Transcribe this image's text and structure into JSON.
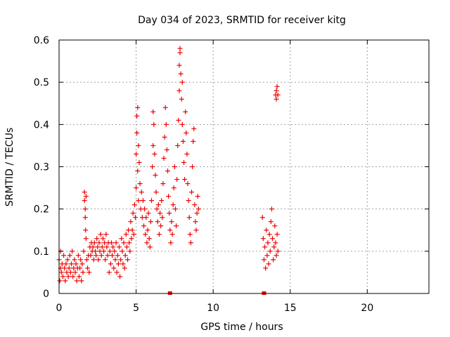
{
  "chart_data": {
    "type": "scatter",
    "title": "Day 034 of 2023, SRMTID for receiver kitg",
    "xlabel": "GPS time / hours",
    "ylabel": "SRMTID / TECUs",
    "xlim": [
      0,
      24
    ],
    "ylim": [
      0,
      0.6
    ],
    "xticks": [
      0,
      5,
      10,
      15,
      20
    ],
    "yticks": [
      0,
      0.1,
      0.2,
      0.3,
      0.4,
      0.5,
      0.6
    ],
    "xtick_labels": [
      "0",
      "5",
      "10",
      "15",
      "20"
    ],
    "ytick_labels": [
      "0",
      "0.1",
      "0.2",
      "0.3",
      "0.4",
      "0.5",
      "0.6"
    ],
    "grid": true,
    "marker": "+",
    "color": "#ee0000",
    "series": [
      {
        "name": "SRMTID",
        "points": [
          [
            0.0,
            0.08
          ],
          [
            0.05,
            0.03
          ],
          [
            0.1,
            0.06
          ],
          [
            0.1,
            0.1
          ],
          [
            0.15,
            0.05
          ],
          [
            0.2,
            0.07
          ],
          [
            0.25,
            0.04
          ],
          [
            0.3,
            0.09
          ],
          [
            0.35,
            0.06
          ],
          [
            0.4,
            0.03
          ],
          [
            0.45,
            0.07
          ],
          [
            0.5,
            0.05
          ],
          [
            0.55,
            0.08
          ],
          [
            0.6,
            0.04
          ],
          [
            0.65,
            0.06
          ],
          [
            0.7,
            0.09
          ],
          [
            0.75,
            0.05
          ],
          [
            0.8,
            0.07
          ],
          [
            0.85,
            0.1
          ],
          [
            0.9,
            0.04
          ],
          [
            0.95,
            0.06
          ],
          [
            1.0,
            0.08
          ],
          [
            1.05,
            0.05
          ],
          [
            1.1,
            0.07
          ],
          [
            1.15,
            0.03
          ],
          [
            1.2,
            0.06
          ],
          [
            1.25,
            0.09
          ],
          [
            1.3,
            0.04
          ],
          [
            1.35,
            0.06
          ],
          [
            1.4,
            0.08
          ],
          [
            1.45,
            0.03
          ],
          [
            1.5,
            0.07
          ],
          [
            1.55,
            0.05
          ],
          [
            1.6,
            0.1
          ],
          [
            1.65,
            0.24
          ],
          [
            1.65,
            0.22
          ],
          [
            1.7,
            0.2
          ],
          [
            1.7,
            0.18
          ],
          [
            1.72,
            0.15
          ],
          [
            1.75,
            0.23
          ],
          [
            1.75,
            0.13
          ],
          [
            1.8,
            0.08
          ],
          [
            1.85,
            0.06
          ],
          [
            1.9,
            0.09
          ],
          [
            1.95,
            0.05
          ],
          [
            2.0,
            0.11
          ],
          [
            2.05,
            0.09
          ],
          [
            2.1,
            0.12
          ],
          [
            2.15,
            0.1
          ],
          [
            2.2,
            0.11
          ],
          [
            2.25,
            0.08
          ],
          [
            2.3,
            0.12
          ],
          [
            2.35,
            0.1
          ],
          [
            2.4,
            0.09
          ],
          [
            2.45,
            0.13
          ],
          [
            2.5,
            0.11
          ],
          [
            2.55,
            0.08
          ],
          [
            2.6,
            0.12
          ],
          [
            2.65,
            0.1
          ],
          [
            2.7,
            0.14
          ],
          [
            2.75,
            0.09
          ],
          [
            2.8,
            0.11
          ],
          [
            2.85,
            0.13
          ],
          [
            2.9,
            0.1
          ],
          [
            2.95,
            0.12
          ],
          [
            3.0,
            0.08
          ],
          [
            3.05,
            0.14
          ],
          [
            3.1,
            0.11
          ],
          [
            3.15,
            0.09
          ],
          [
            3.2,
            0.12
          ],
          [
            3.25,
            0.05
          ],
          [
            3.3,
            0.1
          ],
          [
            3.35,
            0.07
          ],
          [
            3.4,
            0.12
          ],
          [
            3.45,
            0.09
          ],
          [
            3.5,
            0.11
          ],
          [
            3.55,
            0.06
          ],
          [
            3.6,
            0.1
          ],
          [
            3.65,
            0.08
          ],
          [
            3.7,
            0.12
          ],
          [
            3.75,
            0.05
          ],
          [
            3.8,
            0.09
          ],
          [
            3.85,
            0.07
          ],
          [
            3.9,
            0.11
          ],
          [
            3.95,
            0.04
          ],
          [
            4.0,
            0.08
          ],
          [
            4.05,
            0.13
          ],
          [
            4.1,
            0.1
          ],
          [
            4.15,
            0.07
          ],
          [
            4.2,
            0.12
          ],
          [
            4.25,
            0.06
          ],
          [
            4.3,
            0.09
          ],
          [
            4.35,
            0.14
          ],
          [
            4.4,
            0.11
          ],
          [
            4.45,
            0.08
          ],
          [
            4.5,
            0.15
          ],
          [
            4.55,
            0.12
          ],
          [
            4.6,
            0.1
          ],
          [
            4.65,
            0.17
          ],
          [
            4.7,
            0.13
          ],
          [
            4.75,
            0.15
          ],
          [
            4.8,
            0.19
          ],
          [
            4.85,
            0.14
          ],
          [
            4.9,
            0.21
          ],
          [
            4.95,
            0.18
          ],
          [
            5.0,
            0.25
          ],
          [
            5.0,
            0.33
          ],
          [
            5.05,
            0.38
          ],
          [
            5.05,
            0.42
          ],
          [
            5.1,
            0.44
          ],
          [
            5.1,
            0.29
          ],
          [
            5.15,
            0.35
          ],
          [
            5.15,
            0.22
          ],
          [
            5.2,
            0.31
          ],
          [
            5.25,
            0.26
          ],
          [
            5.3,
            0.2
          ],
          [
            5.35,
            0.24
          ],
          [
            5.4,
            0.18
          ],
          [
            5.45,
            0.22
          ],
          [
            5.5,
            0.16
          ],
          [
            5.55,
            0.2
          ],
          [
            5.6,
            0.14
          ],
          [
            5.65,
            0.18
          ],
          [
            5.7,
            0.12
          ],
          [
            5.75,
            0.15
          ],
          [
            5.8,
            0.19
          ],
          [
            5.85,
            0.13
          ],
          [
            5.9,
            0.11
          ],
          [
            5.95,
            0.17
          ],
          [
            6.0,
            0.22
          ],
          [
            6.05,
            0.3
          ],
          [
            6.1,
            0.35
          ],
          [
            6.1,
            0.43
          ],
          [
            6.15,
            0.4
          ],
          [
            6.2,
            0.33
          ],
          [
            6.25,
            0.28
          ],
          [
            6.3,
            0.24
          ],
          [
            6.35,
            0.2
          ],
          [
            6.4,
            0.17
          ],
          [
            6.45,
            0.21
          ],
          [
            6.5,
            0.14
          ],
          [
            6.55,
            0.19
          ],
          [
            6.6,
            0.16
          ],
          [
            6.65,
            0.22
          ],
          [
            6.7,
            0.18
          ],
          [
            6.75,
            0.26
          ],
          [
            6.8,
            0.32
          ],
          [
            6.85,
            0.37
          ],
          [
            6.9,
            0.44
          ],
          [
            6.95,
            0.4
          ],
          [
            7.0,
            0.34
          ],
          [
            7.05,
            0.29
          ],
          [
            7.1,
            0.23
          ],
          [
            7.15,
            0.19
          ],
          [
            7.2,
            0.15
          ],
          [
            7.25,
            0.12
          ],
          [
            7.3,
            0.17
          ],
          [
            7.35,
            0.14
          ],
          [
            7.4,
            0.21
          ],
          [
            7.45,
            0.25
          ],
          [
            7.5,
            0.3
          ],
          [
            7.55,
            0.2
          ],
          [
            7.6,
            0.16
          ],
          [
            7.65,
            0.27
          ],
          [
            7.7,
            0.35
          ],
          [
            7.75,
            0.41
          ],
          [
            7.8,
            0.48
          ],
          [
            7.8,
            0.54
          ],
          [
            7.85,
            0.58
          ],
          [
            7.85,
            0.57
          ],
          [
            7.9,
            0.52
          ],
          [
            7.95,
            0.46
          ],
          [
            8.0,
            0.5
          ],
          [
            8.0,
            0.4
          ],
          [
            8.05,
            0.36
          ],
          [
            8.1,
            0.31
          ],
          [
            8.15,
            0.27
          ],
          [
            8.2,
            0.43
          ],
          [
            8.25,
            0.38
          ],
          [
            8.3,
            0.33
          ],
          [
            8.35,
            0.26
          ],
          [
            8.4,
            0.22
          ],
          [
            8.45,
            0.18
          ],
          [
            8.5,
            0.14
          ],
          [
            8.55,
            0.12
          ],
          [
            8.6,
            0.24
          ],
          [
            8.65,
            0.3
          ],
          [
            8.7,
            0.36
          ],
          [
            8.75,
            0.39
          ],
          [
            8.8,
            0.21
          ],
          [
            8.85,
            0.17
          ],
          [
            8.9,
            0.15
          ],
          [
            8.95,
            0.19
          ],
          [
            9.0,
            0.23
          ],
          [
            9.05,
            0.2
          ],
          [
            13.2,
            0.18
          ],
          [
            13.25,
            0.13
          ],
          [
            13.3,
            0.08
          ],
          [
            13.35,
            0.11
          ],
          [
            13.4,
            0.06
          ],
          [
            13.45,
            0.15
          ],
          [
            13.5,
            0.09
          ],
          [
            13.55,
            0.12
          ],
          [
            13.6,
            0.07
          ],
          [
            13.65,
            0.14
          ],
          [
            13.7,
            0.1
          ],
          [
            13.75,
            0.17
          ],
          [
            13.8,
            0.2
          ],
          [
            13.85,
            0.13
          ],
          [
            13.9,
            0.08
          ],
          [
            13.95,
            0.11
          ],
          [
            14.0,
            0.16
          ],
          [
            14.05,
            0.12
          ],
          [
            14.1,
            0.09
          ],
          [
            14.15,
            0.14
          ],
          [
            14.2,
            0.1
          ],
          [
            14.05,
            0.47
          ],
          [
            14.1,
            0.48
          ],
          [
            14.1,
            0.46
          ],
          [
            14.15,
            0.49
          ],
          [
            14.2,
            0.47
          ]
        ]
      }
    ],
    "zero_markers": [
      7.2,
      13.3
    ]
  }
}
